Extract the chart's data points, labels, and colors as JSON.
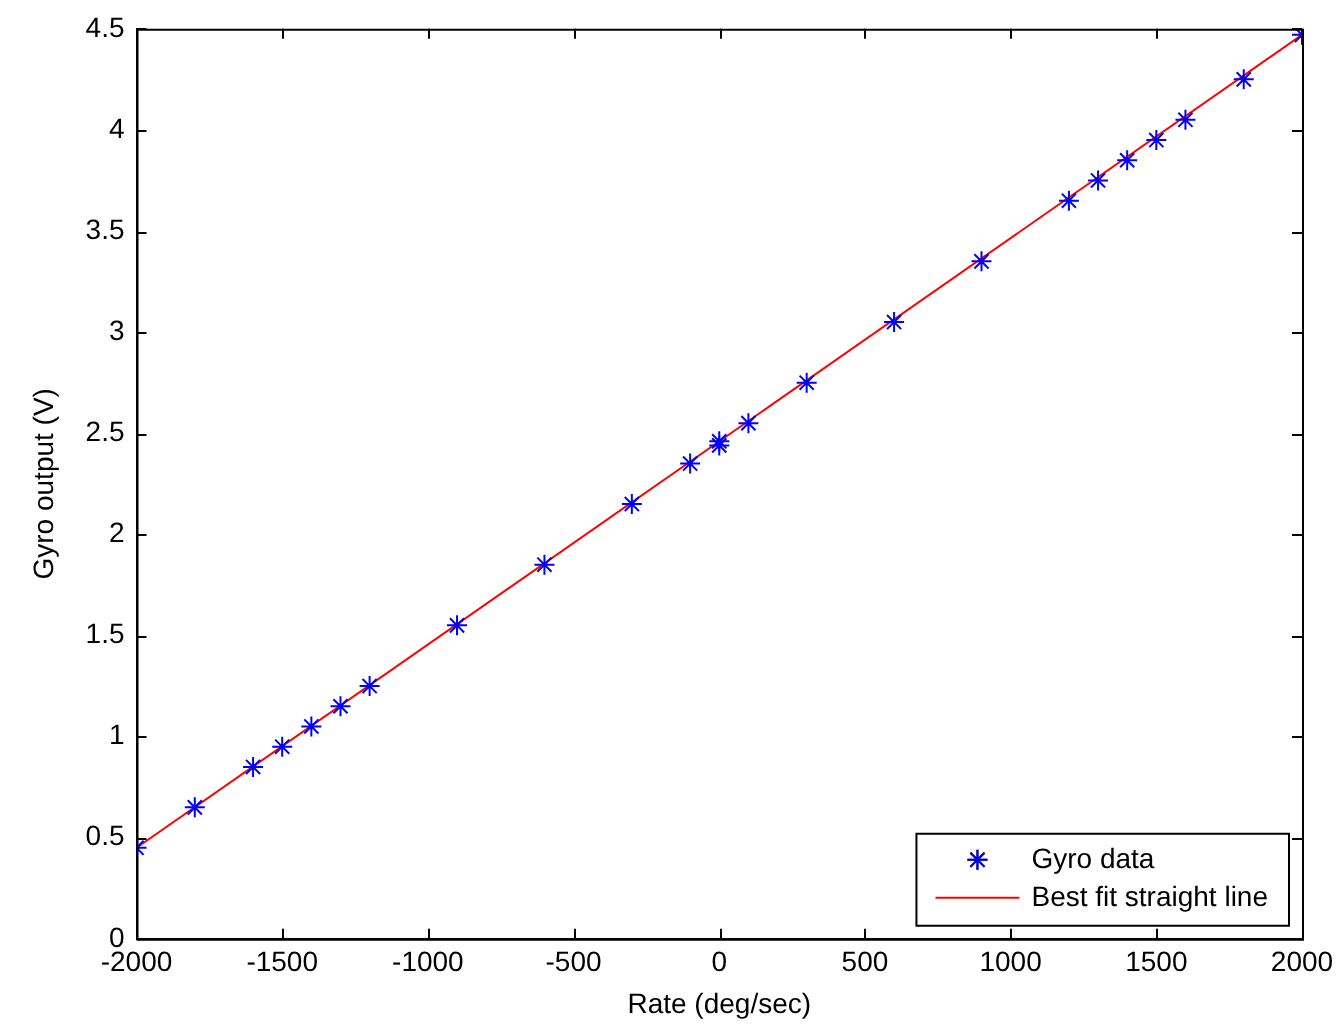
{
  "chart_data": {
    "type": "scatter",
    "xlabel": "Rate (deg/sec)",
    "ylabel": "Gyro output (V)",
    "xlim": [
      -2000,
      2000
    ],
    "xticks": [
      -2000,
      -1500,
      -1000,
      -500,
      0,
      500,
      1000,
      1500,
      2000
    ],
    "ylim": [
      0,
      4.5
    ],
    "yticks": [
      0,
      0.5,
      1,
      1.5,
      2,
      2.5,
      3,
      3.5,
      4,
      4.5
    ],
    "grid": false,
    "legend": "bottom right",
    "series": [
      {
        "name": "Gyro data",
        "marker": "cross",
        "color": "#0000ff",
        "x": [
          -2000,
          -1800,
          -1600,
          -1500,
          -1400,
          -1300,
          -1200,
          -900,
          -600,
          -300,
          -100,
          0,
          0,
          100,
          300,
          600,
          900,
          1200,
          1300,
          1400,
          1500,
          1600,
          1800,
          2000
        ],
        "values": [
          0.45,
          0.65,
          0.85,
          0.95,
          1.05,
          1.15,
          1.25,
          1.55,
          1.85,
          2.15,
          2.35,
          2.44,
          2.46,
          2.55,
          2.75,
          3.05,
          3.35,
          3.65,
          3.75,
          3.85,
          3.95,
          4.05,
          4.25,
          4.47
        ]
      },
      {
        "name": "Best fit straight line",
        "type": "line",
        "color": "#ff0000",
        "x": [
          -2000,
          2000
        ],
        "values": [
          0.45,
          4.47
        ]
      }
    ]
  }
}
